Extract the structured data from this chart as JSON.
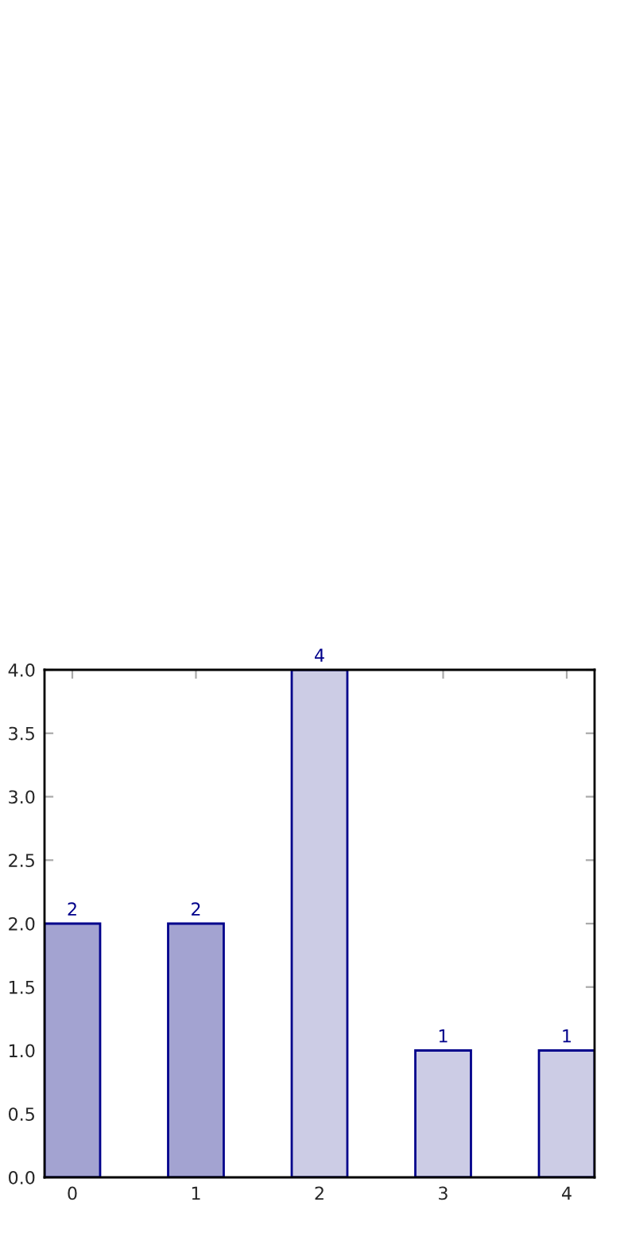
{
  "chart_data": {
    "type": "bar",
    "x": [
      0,
      1,
      2,
      3,
      4
    ],
    "values": [
      2,
      2,
      4,
      1,
      1
    ],
    "colors": [
      "#a3a3d1",
      "#a3a3d1",
      "#cccce5",
      "#cccce5",
      "#cccce5"
    ],
    "data_labels": true,
    "xlim": [
      -0.225,
      4.225
    ],
    "xticks": [
      0,
      1,
      2,
      3,
      4
    ],
    "ylim": [
      0,
      4
    ],
    "yticks": [
      {
        "value": 0,
        "label": "0.0"
      },
      {
        "value": 0.5,
        "label": "0.5"
      },
      {
        "value": 1,
        "label": "1.0"
      },
      {
        "value": 1.5,
        "label": "1.5"
      },
      {
        "value": 2,
        "label": "2.0"
      },
      {
        "value": 2.5,
        "label": "2.5"
      },
      {
        "value": 3,
        "label": "3.0"
      },
      {
        "value": 3.5,
        "label": "3.5"
      },
      {
        "value": 4,
        "label": "4.0"
      }
    ],
    "grid": false,
    "legend": false
  }
}
